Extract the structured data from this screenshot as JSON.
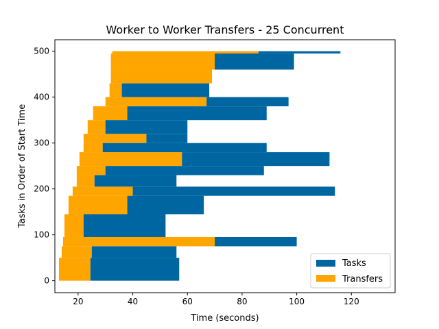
{
  "chart_data": {
    "type": "bar",
    "orientation": "horizontal-gantt",
    "title": "Worker to Worker Transfers - 25 Concurrent",
    "xlabel": "Time (seconds)",
    "ylabel": "Tasks in Order of Start Time",
    "xlim": [
      11.5,
      136
    ],
    "ylim": [
      -26,
      525
    ],
    "xticks": [
      20,
      40,
      60,
      80,
      100,
      120
    ],
    "yticks": [
      0,
      100,
      200,
      300,
      400,
      500
    ],
    "legend": {
      "position": "lower-right",
      "entries": [
        "Tasks",
        "Transfers"
      ]
    },
    "colors": {
      "tasks": "#0066a2",
      "transfers": "#ffa500"
    },
    "series": [
      {
        "name": "Transfers",
        "note": "start -> end of transfer phase per task (seconds), grouped by task index range",
        "groups": [
          {
            "y_range": [
              0,
              50
            ],
            "start": 13.0,
            "end": 24.5
          },
          {
            "y_range": [
              50,
              75
            ],
            "start": 14.0,
            "end": 25.0
          },
          {
            "y_range": [
              75,
              95
            ],
            "start": 14.5,
            "end": 70.0
          },
          {
            "y_range": [
              95,
              145
            ],
            "start": 15.0,
            "end": 22.0
          },
          {
            "y_range": [
              145,
              185
            ],
            "start": 16.5,
            "end": 38.0
          },
          {
            "y_range": [
              185,
              205
            ],
            "start": 18.0,
            "end": 40.0
          },
          {
            "y_range": [
              205,
              230
            ],
            "start": 19.5,
            "end": 26.0
          },
          {
            "y_range": [
              230,
              250
            ],
            "start": 19.5,
            "end": 30.0
          },
          {
            "y_range": [
              250,
              280
            ],
            "start": 20.5,
            "end": 58.0
          },
          {
            "y_range": [
              280,
              300
            ],
            "start": 22.0,
            "end": 29.0
          },
          {
            "y_range": [
              300,
              320
            ],
            "start": 22.0,
            "end": 45.0
          },
          {
            "y_range": [
              320,
              350
            ],
            "start": 23.5,
            "end": 30.0
          },
          {
            "y_range": [
              350,
              380
            ],
            "start": 25.5,
            "end": 38.0
          },
          {
            "y_range": [
              380,
              400
            ],
            "start": 30.0,
            "end": 67.0
          },
          {
            "y_range": [
              400,
              430
            ],
            "start": 31.5,
            "end": 36.0
          },
          {
            "y_range": [
              430,
              460
            ],
            "start": 32.0,
            "end": 69.0
          },
          {
            "y_range": [
              460,
              495
            ],
            "start": 32.0,
            "end": 70.0
          },
          {
            "y_range": [
              495,
              500
            ],
            "start": 32.5,
            "end": 86.0
          }
        ]
      },
      {
        "name": "Tasks",
        "note": "end of task execution (seconds) following the transfer phase",
        "groups": [
          {
            "y_range": [
              0,
              50
            ],
            "end": 57.0
          },
          {
            "y_range": [
              50,
              75
            ],
            "end": 56.0
          },
          {
            "y_range": [
              75,
              95
            ],
            "end": 100.0
          },
          {
            "y_range": [
              95,
              145
            ],
            "end": 52.0
          },
          {
            "y_range": [
              145,
              185
            ],
            "end": 66.0
          },
          {
            "y_range": [
              185,
              205
            ],
            "end": 114.0
          },
          {
            "y_range": [
              205,
              230
            ],
            "end": 56.0
          },
          {
            "y_range": [
              230,
              250
            ],
            "end": 88.0
          },
          {
            "y_range": [
              250,
              280
            ],
            "end": 112.0
          },
          {
            "y_range": [
              280,
              300
            ],
            "end": 89.0
          },
          {
            "y_range": [
              300,
              320
            ],
            "end": 60.0
          },
          {
            "y_range": [
              320,
              350
            ],
            "end": 60.0
          },
          {
            "y_range": [
              350,
              380
            ],
            "end": 89.0
          },
          {
            "y_range": [
              380,
              400
            ],
            "end": 97.0
          },
          {
            "y_range": [
              400,
              430
            ],
            "end": 68.0
          },
          {
            "y_range": [
              430,
              460
            ],
            "end": 69.0
          },
          {
            "y_range": [
              460,
              495
            ],
            "end": 99.0
          },
          {
            "y_range": [
              495,
              500
            ],
            "end": 116.0
          }
        ]
      }
    ]
  }
}
